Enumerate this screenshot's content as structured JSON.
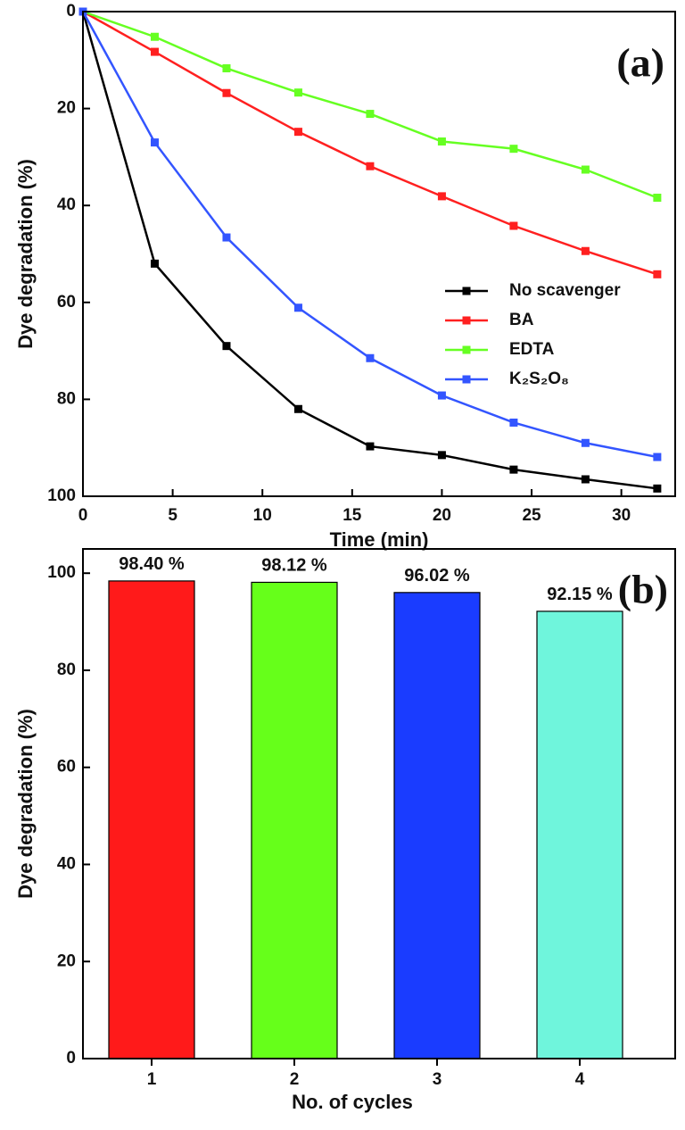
{
  "chart_data": [
    {
      "type": "line",
      "annotation": "(a)",
      "xlabel": "Time (min)",
      "ylabel": "Dye degradation (%)",
      "x": [
        0,
        4,
        8,
        12,
        16,
        20,
        24,
        28,
        32
      ],
      "series": [
        {
          "name": "No scavenger",
          "color": "#000000",
          "values": [
            0,
            52,
            69,
            82,
            89.7,
            91.5,
            94.5,
            96.5,
            98.4
          ]
        },
        {
          "name": "BA",
          "color": "#ff2020",
          "values": [
            0,
            8.3,
            16.8,
            24.8,
            31.9,
            38.1,
            44.2,
            49.4,
            54.2
          ]
        },
        {
          "name": "EDTA",
          "color": "#66ff22",
          "values": [
            0,
            5.2,
            11.7,
            16.7,
            21.1,
            26.8,
            28.3,
            32.6,
            38.4
          ]
        },
        {
          "name": "K₂S₂O₈",
          "color": "#3355ff",
          "values": [
            0,
            27,
            46.6,
            61.1,
            71.5,
            79.2,
            84.8,
            89,
            91.9
          ]
        }
      ],
      "xlim": [
        0,
        33
      ],
      "xticks": [
        0,
        5,
        10,
        15,
        20,
        25,
        30
      ],
      "ylim": [
        0,
        100
      ],
      "yticks": [
        0,
        20,
        40,
        60,
        80,
        100
      ],
      "y_inverted": true,
      "legend": "right",
      "grid": false
    },
    {
      "type": "bar",
      "annotation": "(b)",
      "xlabel": "No. of cycles",
      "ylabel": "Dye degradation (%)",
      "categories": [
        "1",
        "2",
        "3",
        "4"
      ],
      "values": [
        98.4,
        98.12,
        96.02,
        92.15
      ],
      "value_labels": [
        "98.40 %",
        "98.12 %",
        "96.02 %",
        "92.15 %"
      ],
      "colors": [
        "#ff1a1a",
        "#66ff1a",
        "#1a3cff",
        "#6ff5dc"
      ],
      "ylim": [
        0,
        105
      ],
      "yticks": [
        0,
        20,
        40,
        60,
        80,
        100
      ],
      "grid": false
    }
  ]
}
